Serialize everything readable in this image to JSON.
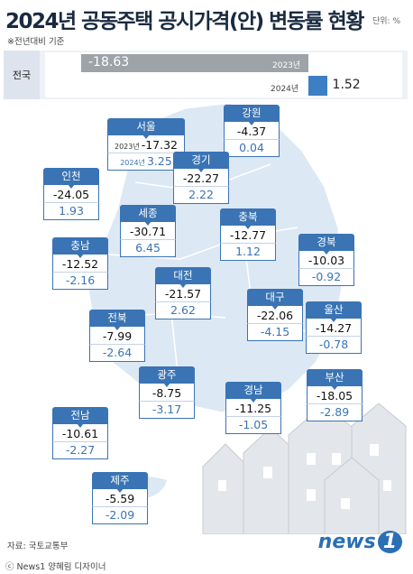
{
  "header": {
    "title": "2024년 공동주택 공시가격(안) 변동률 현황",
    "unit": "단위: %",
    "note": "※전년대비 기준"
  },
  "nationwide": {
    "label": "전국",
    "year_2023": "2023년",
    "year_2024": "2024년",
    "value_2023": "-18.63",
    "value_2024": "1.52"
  },
  "chart_data": {
    "type": "bar",
    "title": "2024년 공동주택 공시가격(안) 변동률 현황",
    "unit": "단위: %",
    "note": "※전년대비 기준",
    "categories": [
      "전국",
      "서울",
      "강원",
      "경기",
      "인천",
      "세종",
      "충북",
      "경북",
      "충남",
      "대전",
      "대구",
      "울산",
      "전북",
      "광주",
      "경남",
      "부산",
      "전남",
      "제주"
    ],
    "series": [
      {
        "name": "2023년",
        "values": [
          -18.63,
          -17.32,
          -4.37,
          -22.27,
          -24.05,
          -30.71,
          -12.77,
          -10.03,
          -12.52,
          -21.57,
          -22.06,
          -14.27,
          -7.99,
          -8.75,
          -11.25,
          -18.05,
          -10.61,
          -5.59
        ]
      },
      {
        "name": "2024년",
        "values": [
          1.52,
          3.25,
          0.04,
          2.22,
          1.93,
          6.45,
          1.12,
          -0.92,
          -2.16,
          2.62,
          -4.15,
          -0.78,
          -2.64,
          -3.17,
          -1.05,
          -2.89,
          -2.27,
          -2.09
        ]
      }
    ]
  },
  "regions": [
    {
      "name": "서울",
      "v2023": "-17.32",
      "v2024": "3.25",
      "yr23": "2023년",
      "yr24": "2024년"
    },
    {
      "name": "강원",
      "v2023": "-4.37",
      "v2024": "0.04"
    },
    {
      "name": "경기",
      "v2023": "-22.27",
      "v2024": "2.22"
    },
    {
      "name": "인천",
      "v2023": "-24.05",
      "v2024": "1.93"
    },
    {
      "name": "세종",
      "v2023": "-30.71",
      "v2024": "6.45"
    },
    {
      "name": "충북",
      "v2023": "-12.77",
      "v2024": "1.12"
    },
    {
      "name": "경북",
      "v2023": "-10.03",
      "v2024": "-0.92"
    },
    {
      "name": "충남",
      "v2023": "-12.52",
      "v2024": "-2.16"
    },
    {
      "name": "대전",
      "v2023": "-21.57",
      "v2024": "2.62"
    },
    {
      "name": "대구",
      "v2023": "-22.06",
      "v2024": "-4.15"
    },
    {
      "name": "울산",
      "v2023": "-14.27",
      "v2024": "-0.78"
    },
    {
      "name": "전북",
      "v2023": "-7.99",
      "v2024": "-2.64"
    },
    {
      "name": "광주",
      "v2023": "-8.75",
      "v2024": "-3.17"
    },
    {
      "name": "경남",
      "v2023": "-11.25",
      "v2024": "-1.05"
    },
    {
      "name": "부산",
      "v2023": "-18.05",
      "v2024": "-2.89"
    },
    {
      "name": "전남",
      "v2023": "-10.61",
      "v2024": "-2.27"
    },
    {
      "name": "제주",
      "v2023": "-5.59",
      "v2024": "-2.09"
    }
  ],
  "footer": {
    "source": "자료: 국토교통부",
    "credit": "ⓒ News1 양혜림 디자이너",
    "logo": "news",
    "logo_num": "1"
  },
  "colors": {
    "accent": "#3a74b4",
    "bar_2023": "#9ea3a8",
    "bar_2024": "#3e7ec2",
    "map": "#dce8f4"
  }
}
